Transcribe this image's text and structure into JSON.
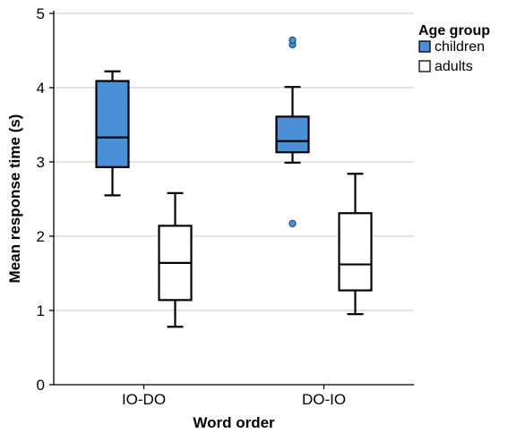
{
  "chart_data": {
    "type": "boxplot",
    "xlabel": "Word order",
    "ylabel": "Mean response time (s)",
    "ylim": [
      0,
      5
    ],
    "yticks": [
      "0",
      "1",
      "2",
      "3",
      "4",
      "5"
    ],
    "categories": [
      "IO-DO",
      "DO-IO"
    ],
    "grid": true,
    "legend": {
      "title": "Age group",
      "placement": "right",
      "items": [
        "children",
        "adults"
      ]
    },
    "series": [
      {
        "name": "children",
        "color": "#4a90d9",
        "boxes": [
          {
            "category": "IO-DO",
            "whisker_low": 2.55,
            "q1": 2.93,
            "median": 3.33,
            "q3": 4.09,
            "whisker_high": 4.22,
            "outliers": []
          },
          {
            "category": "DO-IO",
            "whisker_low": 2.99,
            "q1": 3.13,
            "median": 3.28,
            "q3": 3.61,
            "whisker_high": 4.01,
            "outliers": [
              4.58,
              4.64,
              2.17
            ]
          }
        ]
      },
      {
        "name": "adults",
        "color": "#ffffff",
        "boxes": [
          {
            "category": "IO-DO",
            "whisker_low": 0.78,
            "q1": 1.14,
            "median": 1.64,
            "q3": 2.14,
            "whisker_high": 2.58,
            "outliers": []
          },
          {
            "category": "DO-IO",
            "whisker_low": 0.95,
            "q1": 1.27,
            "median": 1.62,
            "q3": 2.31,
            "whisker_high": 2.84,
            "outliers": []
          }
        ]
      }
    ]
  }
}
